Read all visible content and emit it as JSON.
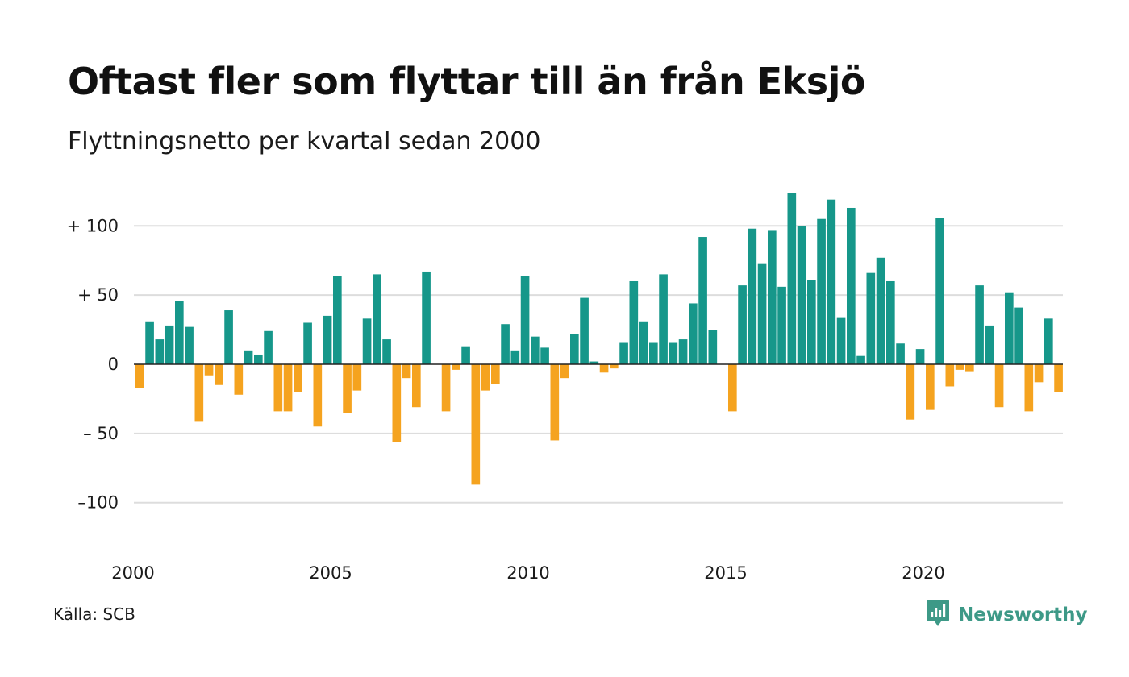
{
  "title": "Oftast fler som flyttar till än från Eksjö",
  "subtitle": "Flyttningsnetto per kvartal sedan 2000",
  "source": "Källa: SCB",
  "brand": {
    "name": "Newsworthy",
    "icon": "newsworthy-logo-icon",
    "color": "#3d9987"
  },
  "colors": {
    "positive": "#16978a",
    "negative": "#f5a31f",
    "grid": "#dddddd",
    "zero_line": "#222222"
  },
  "chart_data": {
    "type": "bar",
    "x_start": "2000-Q1",
    "interval": "quarter",
    "x_ticks": [
      "2000",
      "2005",
      "2010",
      "2015",
      "2020"
    ],
    "y_ticks": [
      100,
      50,
      0,
      -50,
      -100
    ],
    "y_tick_labels": [
      "+ 100",
      "+  50",
      "0",
      "– 50",
      "–100"
    ],
    "ylim": [
      -135,
      130
    ],
    "grid": true,
    "values": [
      -17,
      31,
      18,
      28,
      46,
      27,
      -41,
      -8,
      -15,
      39,
      -22,
      10,
      7,
      24,
      -34,
      -34,
      -20,
      30,
      -45,
      35,
      64,
      -35,
      -19,
      33,
      65,
      18,
      -56,
      -10,
      -31,
      67,
      0,
      -34,
      -4,
      13,
      -87,
      -19,
      -14,
      29,
      10,
      64,
      20,
      12,
      -55,
      -10,
      22,
      48,
      2,
      -6,
      -3,
      16,
      60,
      31,
      16,
      65,
      16,
      18,
      44,
      92,
      25,
      0,
      -34,
      57,
      98,
      73,
      97,
      56,
      124,
      100,
      61,
      105,
      119,
      34,
      113,
      6,
      66,
      77,
      60,
      15,
      -40,
      11,
      -33,
      106,
      -16,
      -4,
      -5,
      57,
      28,
      -31,
      52,
      41,
      -34,
      -13,
      33,
      -20
    ]
  }
}
